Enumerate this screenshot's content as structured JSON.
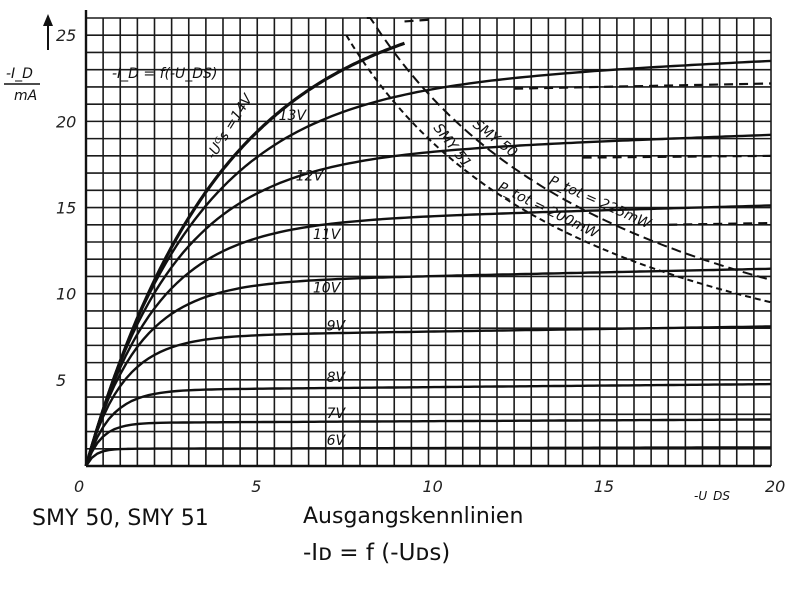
{
  "chart_data": {
    "type": "line",
    "title": "-I_D = f(-U_DS)",
    "xlabel": "-U_DS / V",
    "ylabel": "-I_D / mA",
    "xlim": [
      0,
      20
    ],
    "ylim": [
      0,
      26
    ],
    "x_ticks": [
      "0",
      "5",
      "10",
      "15",
      "20"
    ],
    "y_ticks": [
      "5",
      "10",
      "15",
      "20",
      "25"
    ],
    "grid": true,
    "series": [
      {
        "name": "-U_GS = 14V",
        "saturation": 25.8,
        "knee": 8.6
      },
      {
        "name": "13V",
        "saturation": 21.8,
        "knee": 7.0
      },
      {
        "name": "12V",
        "saturation": 17.8,
        "knee": 5.6
      },
      {
        "name": "11V",
        "saturation": 14.0,
        "knee": 4.4
      },
      {
        "name": "10V",
        "saturation": 10.6,
        "knee": 3.3
      },
      {
        "name": "9V",
        "saturation": 7.5,
        "knee": 2.4
      },
      {
        "name": "8V",
        "saturation": 4.4,
        "knee": 1.6
      },
      {
        "name": "7V",
        "saturation": 2.5,
        "knee": 1.0
      },
      {
        "name": "6V",
        "saturation": 1.0,
        "knee": 0.6
      }
    ],
    "power_limits": [
      {
        "name": "SMY 50",
        "label": "P_tot = 225mW",
        "power_mW": 225
      },
      {
        "name": "SMY 51",
        "label": "P_tot = 200mW",
        "power_mW": 200
      }
    ]
  },
  "caption": {
    "models": "SMY 50, SMY 51",
    "title": "Ausgangskennlinien",
    "formula": "-Iᴅ = f (-Uᴅꜱ)"
  },
  "colors": {
    "ink": "#111111",
    "grid": "#1a1a1a",
    "background": "#ffffff"
  }
}
